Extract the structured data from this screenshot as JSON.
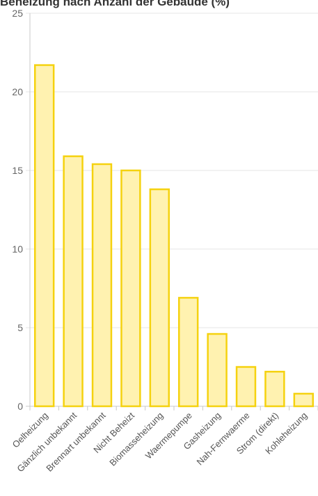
{
  "chart_data": {
    "type": "bar",
    "title": "Beheizung nach Anzahl der Gebäude (%)",
    "categories": [
      "Oelheizung",
      "Gänzlich unbekannt",
      "Brennart unbekannt",
      "Nicht Beheizt",
      "Biomasseheizung",
      "Waermepumpe",
      "Gasheizung",
      "Nah-Fernwaerme",
      "Strom (direkt)",
      "Kohleheizung"
    ],
    "values": [
      21.7,
      15.9,
      15.4,
      15.0,
      13.8,
      6.9,
      4.6,
      2.5,
      2.2,
      0.8
    ],
    "ylim": [
      0,
      25
    ],
    "yticks": [
      0,
      5,
      10,
      15,
      20,
      25
    ],
    "xlabel": "",
    "ylabel": "",
    "grid": true,
    "legend": "none",
    "colors": {
      "bar_fill": "#fff2b0",
      "bar_stroke": "#f5d20f",
      "grid": "#e6e6e6",
      "axis": "#c8c8c8"
    }
  }
}
